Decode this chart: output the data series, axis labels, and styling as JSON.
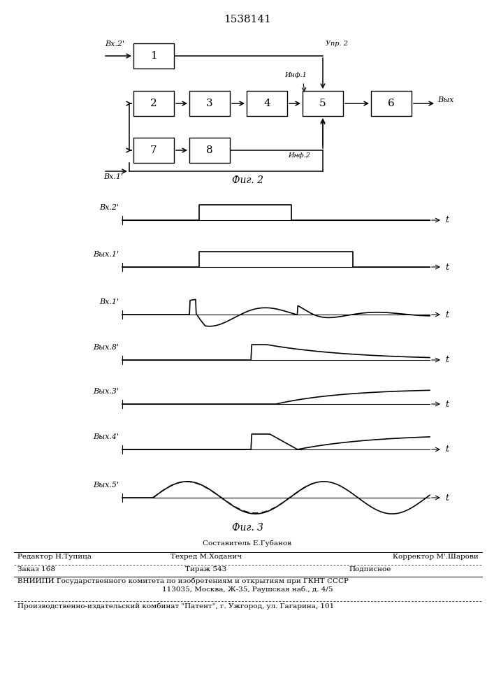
{
  "title": "1538141",
  "fig2_label": "Фиг. 2",
  "fig3_label": "Фиг. 3",
  "footer_editor": "Редактор Н.Тупица",
  "footer_composer": "Составитель Е.Губанов",
  "footer_techred": "Техред М.Ходанич",
  "footer_corrector": "Корректор М'.Шарови",
  "footer_text1": "Заказ 168",
  "footer_text2": "Тираж 543",
  "footer_text3": "Подписное",
  "footer_text4": "ВНИИПИ Государственного комитета по изобретениям и открытиям при ГКНТ СССР",
  "footer_text5": "113035, Москва, Ж-35, Раушская наб., д. 4/5",
  "footer_text6": "Производственно-издательский комбинат \"Патент\", г. Ужгород, ул. Гагарина, 101"
}
